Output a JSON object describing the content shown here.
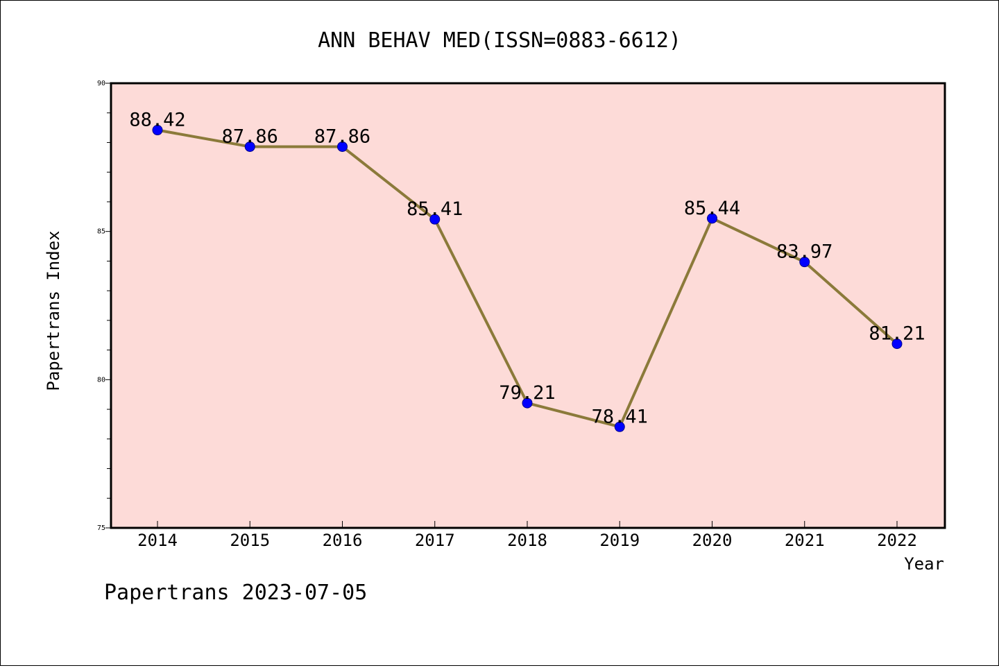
{
  "chart_data": {
    "type": "line",
    "title": "ANN BEHAV MED(ISSN=0883-6612)",
    "xlabel": "Year",
    "ylabel": "Papertrans Index",
    "categories": [
      "2014",
      "2015",
      "2016",
      "2017",
      "2018",
      "2019",
      "2020",
      "2021",
      "2022"
    ],
    "series": [
      {
        "values": [
          88.42,
          87.86,
          87.86,
          85.41,
          79.21,
          78.41,
          85.44,
          83.97,
          81.21
        ]
      }
    ],
    "data_labels": [
      "88.42",
      "87.86",
      "87.86",
      "85.41",
      "79.21",
      "78.41",
      "85.44",
      "83.97",
      "81.21"
    ],
    "ylim": [
      75,
      90
    ],
    "y_ticks": [
      75,
      80,
      85,
      90
    ],
    "y_tick_labels": [
      "75",
      "80",
      "85",
      "90"
    ],
    "y_minor_step": 1,
    "grid": false,
    "legend": "none",
    "colors": {
      "plot_background": "#fddbd8",
      "line": "#8b7a3a",
      "marker": "#0000ff",
      "axis": "#000000"
    }
  },
  "footer": {
    "text": "Papertrans 2023-07-05"
  }
}
